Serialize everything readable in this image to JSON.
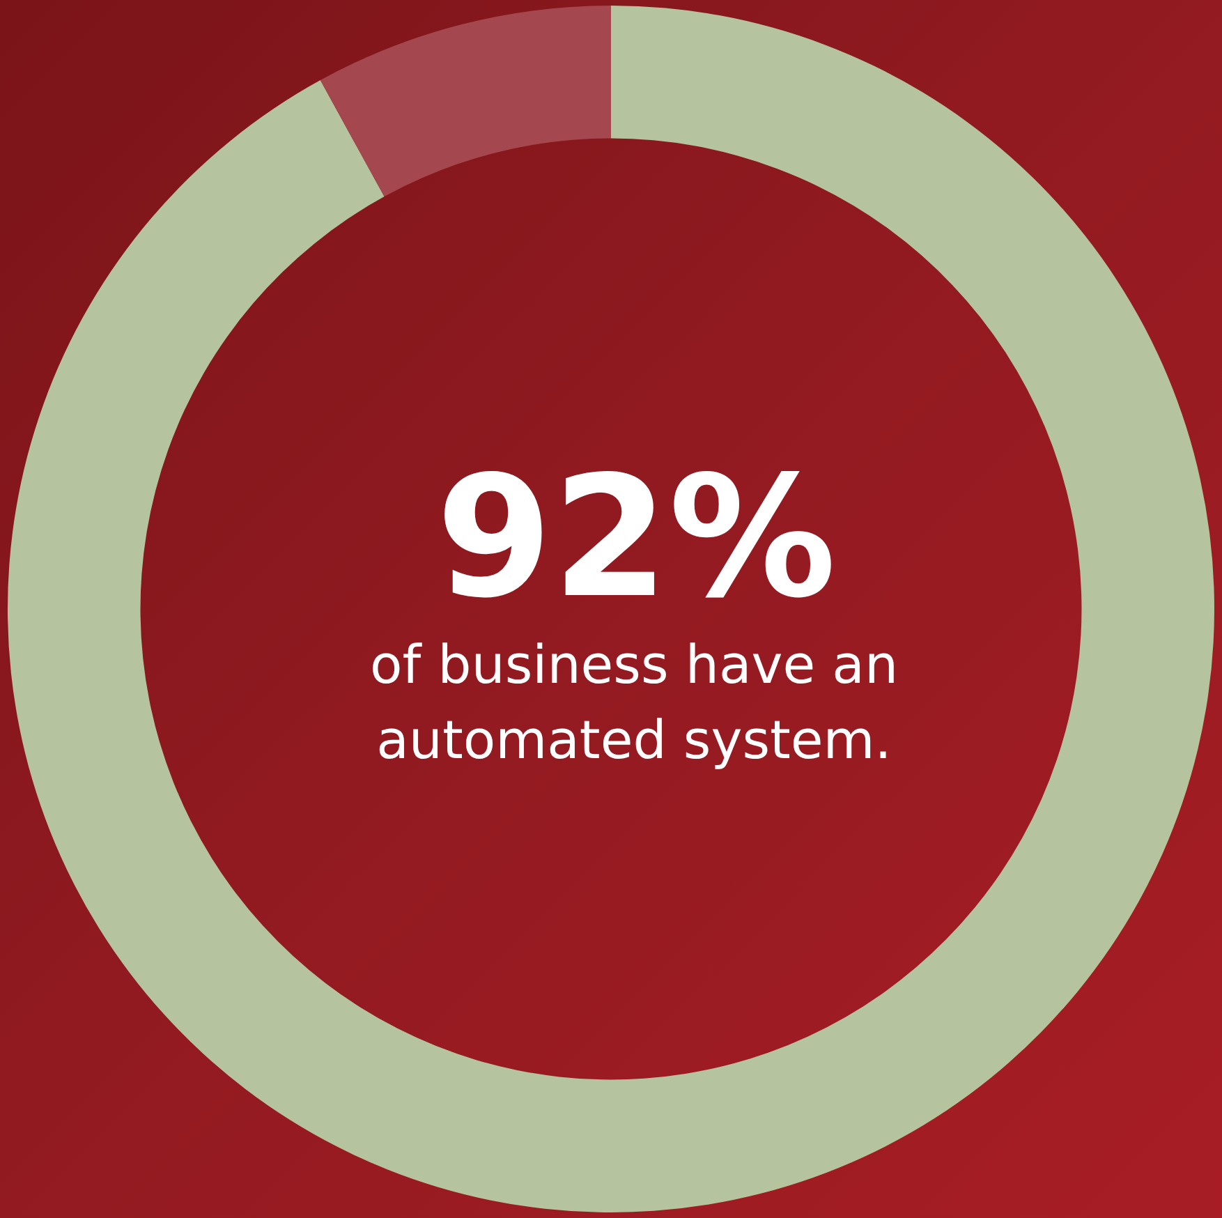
{
  "chart_data": {
    "type": "donut",
    "categories": [
      null,
      null
    ],
    "values": [
      92,
      8
    ],
    "colors": [
      "#b5c49e",
      "#a5474e"
    ],
    "value_labels": [
      "92%",
      null
    ],
    "annotations": [
      "of business have an automated system."
    ]
  }
}
